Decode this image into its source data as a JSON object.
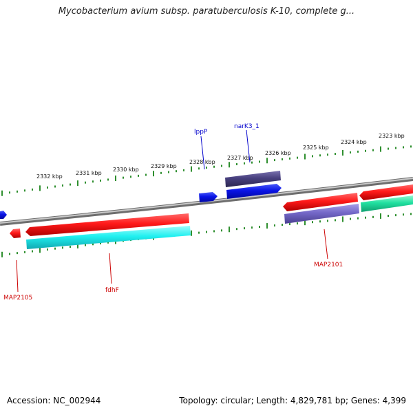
{
  "title": "Mycobacterium avium subsp. paratuberculosis K-10, complete g...",
  "footer": {
    "accession": "Accession: NC_002944",
    "topology": "Topology: circular; Length: 4,829,781 bp; Genes: 4,399"
  },
  "colors": {
    "backbone": "#8a8a8a",
    "red": "#ff1a1a",
    "cyan": "#20f0f0",
    "blue": "#0a14e6",
    "darkblue": "#48407e",
    "lavender": "#7468c8",
    "green": "#20e0a0",
    "tick": "#2f8f2f",
    "gene_label_red": "#cc0000",
    "gene_label_blue": "#0000cc"
  },
  "kbp_labels": [
    "2332 kbp",
    "2331 kbp",
    "2330 kbp",
    "2329 kbp",
    "2328 kbp",
    "2327 kbp",
    "2326 kbp",
    "2325 kbp",
    "2324 kbp",
    "2323 kbp"
  ],
  "gene_labels": [
    {
      "text": "lppP",
      "color": "blue"
    },
    {
      "text": "narK3_1",
      "color": "blue"
    },
    {
      "text": "MAP2105",
      "color": "red"
    },
    {
      "text": "fdhF",
      "color": "red"
    },
    {
      "text": "MAP2101",
      "color": "red"
    }
  ]
}
